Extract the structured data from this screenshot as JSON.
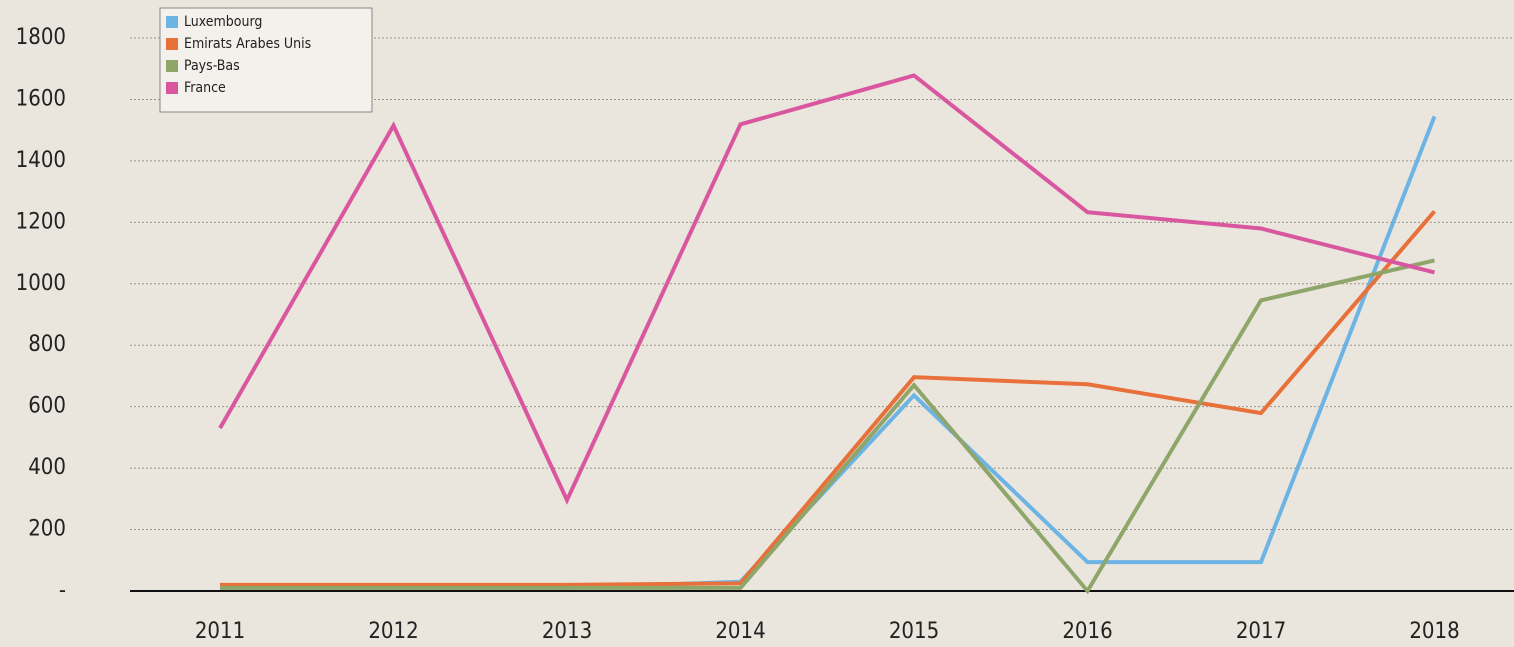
{
  "chart_data": {
    "type": "line",
    "categories": [
      "2011",
      "2012",
      "2013",
      "2014",
      "2015",
      "2016",
      "2017",
      "2018"
    ],
    "series": [
      {
        "name": "Luxembourg",
        "color": "#6cb4e4",
        "values": [
          10,
          10,
          10,
          30,
          637,
          94,
          94,
          1545
        ]
      },
      {
        "name": "Emirats Arabes Unis",
        "color": "#e8703a",
        "values": [
          20,
          20,
          20,
          25,
          696,
          673,
          579,
          1236
        ]
      },
      {
        "name": "Pays-Bas",
        "color": "#8fa66a",
        "values": [
          10,
          10,
          10,
          10,
          670,
          0,
          946,
          1076
        ]
      },
      {
        "name": "France",
        "color": "#d9579f",
        "values": [
          530,
          1515,
          296,
          1519,
          1678,
          1233,
          1180,
          1037
        ]
      }
    ],
    "ylim": [
      0,
      1800
    ],
    "yticks": [
      {
        "value": 0,
        "label": "-"
      },
      200,
      400,
      600,
      800,
      1000,
      1200,
      1400,
      1600,
      1800
    ],
    "grid": true,
    "legend": "upper left"
  }
}
